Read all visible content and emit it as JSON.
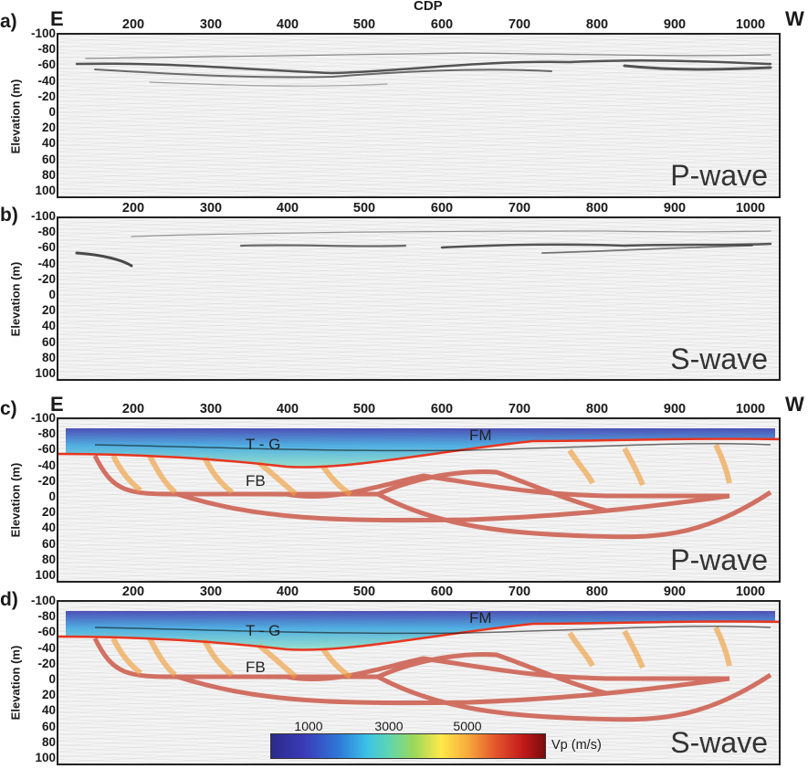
{
  "x_axis_title": "CDP",
  "side_labels": {
    "left": "E",
    "right": "W"
  },
  "x_ticks": [
    "200",
    "300",
    "400",
    "500",
    "600",
    "700",
    "800",
    "900",
    "1000"
  ],
  "y_ticks": [
    "-100",
    "-80",
    "-60",
    "-40",
    "-20",
    "0",
    "20",
    "40",
    "60",
    "80",
    "100"
  ],
  "y_axis_title": "Elevation (m)",
  "panels": [
    {
      "label": "a)",
      "wave": "P-wave"
    },
    {
      "label": "b)",
      "wave": "S-wave"
    },
    {
      "label": "c)",
      "wave": "P-wave"
    },
    {
      "label": "d)",
      "wave": "S-wave"
    }
  ],
  "annotations": {
    "tg": "T - G",
    "fm": "FM",
    "fb": "FB"
  },
  "colorbar": {
    "ticks": [
      "1000",
      "3000",
      "5000"
    ],
    "title": "Vp (m/s)"
  },
  "colors": {
    "boundary_line": "#e8351f",
    "ray_path": "#cc5a4a",
    "frame": "#222222"
  }
}
